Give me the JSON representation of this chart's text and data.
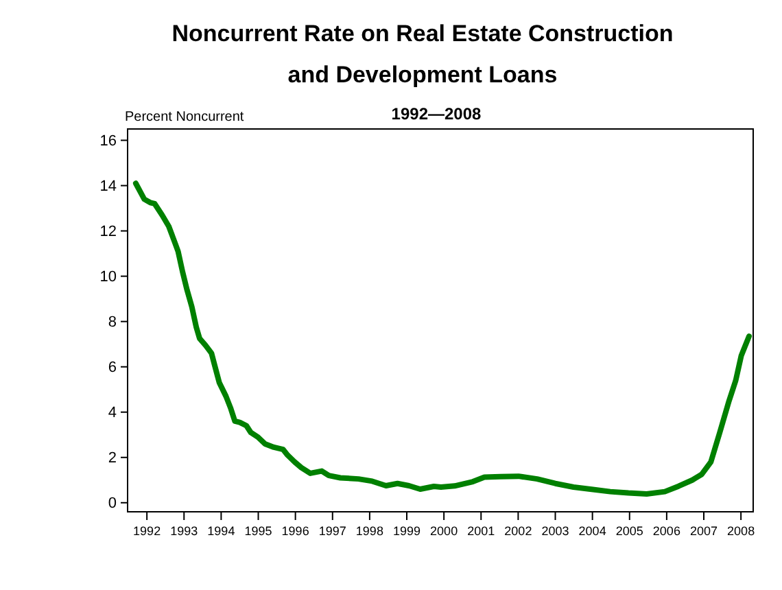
{
  "chart_data": {
    "type": "line",
    "title": "Noncurrent Rate on Real Estate Construction\nand Development Loans",
    "subtitle": "1992—2008",
    "ylabel": "Percent Noncurrent",
    "x": [
      1991.7,
      1991.93,
      1992.09,
      1992.21,
      1992.41,
      1992.59,
      1992.75,
      1992.84,
      1992.96,
      1993.08,
      1993.21,
      1993.33,
      1993.42,
      1993.58,
      1993.74,
      1993.82,
      1993.95,
      1994.13,
      1994.25,
      1994.37,
      1994.5,
      1994.68,
      1994.8,
      1994.99,
      1995.18,
      1995.42,
      1995.67,
      1995.79,
      1995.98,
      1996.16,
      1996.4,
      1996.71,
      1996.9,
      1997.21,
      1997.7,
      1998.07,
      1998.44,
      1998.75,
      1999.06,
      1999.36,
      1999.73,
      1999.92,
      2000.29,
      2000.78,
      2001.09,
      2001.52,
      2002.01,
      2002.51,
      2003.0,
      2003.49,
      2003.98,
      2004.48,
      2004.97,
      2005.46,
      2005.95,
      2006.32,
      2006.69,
      2006.94,
      2007.19,
      2007.43,
      2007.68,
      2007.86,
      2008.01,
      2008.22
    ],
    "series": [
      {
        "color": "#008000",
        "values": [
          14.1,
          13.4,
          13.25,
          13.2,
          12.7,
          12.2,
          11.5,
          11.1,
          10.2,
          9.4,
          8.65,
          7.75,
          7.25,
          6.95,
          6.6,
          6.1,
          5.3,
          4.7,
          4.2,
          3.6,
          3.55,
          3.4,
          3.1,
          2.9,
          2.6,
          2.45,
          2.35,
          2.1,
          1.8,
          1.55,
          1.3,
          1.4,
          1.2,
          1.1,
          1.05,
          0.95,
          0.75,
          0.85,
          0.75,
          0.6,
          0.72,
          0.69,
          0.74,
          0.93,
          1.13,
          1.15,
          1.17,
          1.05,
          0.85,
          0.69,
          0.59,
          0.49,
          0.43,
          0.39,
          0.49,
          0.73,
          1.0,
          1.25,
          1.8,
          3.1,
          4.5,
          5.4,
          6.5,
          7.35
        ]
      }
    ],
    "xlim": [
      1991.48,
      2008.33
    ],
    "xticks": [
      1992,
      1993,
      1994,
      1995,
      1996,
      1997,
      1998,
      1999,
      2000,
      2001,
      2002,
      2003,
      2004,
      2005,
      2006,
      2007,
      2008
    ],
    "ylim": [
      -0.4,
      16.5
    ],
    "yticks": [
      0,
      2,
      4,
      6,
      8,
      10,
      12,
      14,
      16
    ],
    "marker": "none",
    "line_style": "solid"
  }
}
